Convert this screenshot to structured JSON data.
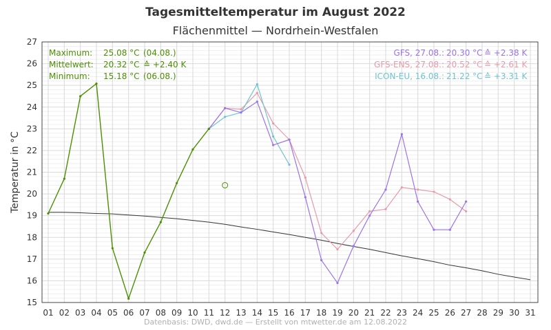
{
  "chart_data": {
    "type": "line",
    "title": "Tagesmitteltemperatur im August 2022",
    "subtitle": "Flächenmittel — Nordrhein-Westfalen",
    "ylabel": "Temperatur in °C",
    "source": "Datenbasis: DWD, dwd.de — Erstellt von mtwetter.de am 12.08.2022",
    "ylim": [
      15,
      27
    ],
    "xlim": [
      1,
      31
    ],
    "x_tick_labels": [
      "01",
      "02",
      "03",
      "04",
      "05",
      "06",
      "07",
      "08",
      "09",
      "10",
      "11",
      "12",
      "13",
      "14",
      "15",
      "16",
      "17",
      "18",
      "19",
      "20",
      "21",
      "22",
      "23",
      "24",
      "25",
      "26",
      "27",
      "28",
      "29",
      "30",
      "31"
    ],
    "y_ticks": [
      15,
      16,
      17,
      18,
      19,
      20,
      21,
      22,
      23,
      24,
      25,
      26,
      27
    ],
    "grid": true,
    "stats": [
      {
        "label": "Maximum:",
        "value": "25.08 °C",
        "extra": "(04.08.)"
      },
      {
        "label": "Mittelwert:",
        "value": "20.32 °C",
        "extra": "≙ +2.40 K"
      },
      {
        "label": "Minimum:",
        "value": "15.18 °C",
        "extra": "(06.08.)"
      }
    ],
    "legend": [
      {
        "label": "GFS, 27.08.:",
        "value": "20.30 °C",
        "delta": "≙ +2.38 K",
        "color": "#9b72ea"
      },
      {
        "label": "GFS-ENS, 27.08.:",
        "value": "20.52 °C",
        "delta": "≙ +2.61 K",
        "color": "#e89aa8"
      },
      {
        "label": "ICON-EU, 16.08.:",
        "value": "21.22 °C",
        "delta": "≙ +3.31 K",
        "color": "#6cc4d0"
      }
    ],
    "mean_marker": {
      "x": 12,
      "y": 20.4,
      "color": "#4a8f00"
    },
    "series": [
      {
        "key": "observed",
        "color": "#4a8f00",
        "x": [
          1,
          2,
          3,
          4,
          5,
          6,
          7,
          8,
          9,
          10,
          11
        ],
        "y": [
          19.1,
          20.7,
          24.5,
          25.08,
          17.5,
          15.18,
          17.3,
          18.7,
          20.5,
          22.05,
          23.0
        ]
      },
      {
        "key": "climate",
        "color": "#333333",
        "x": [
          1,
          2,
          3,
          4,
          5,
          6,
          7,
          8,
          9,
          10,
          11,
          12,
          13,
          14,
          15,
          16,
          17,
          18,
          19,
          20,
          21,
          22,
          23,
          24,
          25,
          26,
          27,
          28,
          29,
          30,
          31
        ],
        "y": [
          19.15,
          19.15,
          19.13,
          19.1,
          19.08,
          19.03,
          18.98,
          18.92,
          18.86,
          18.78,
          18.7,
          18.6,
          18.48,
          18.37,
          18.25,
          18.13,
          18.0,
          17.87,
          17.72,
          17.58,
          17.45,
          17.3,
          17.15,
          17.02,
          16.88,
          16.72,
          16.6,
          16.46,
          16.3,
          16.17,
          16.05
        ]
      },
      {
        "key": "gfs",
        "color": "#9b72ea",
        "x": [
          11,
          12,
          13,
          14,
          15,
          16,
          17,
          18,
          19,
          20,
          21,
          22,
          23,
          24,
          25,
          26,
          27
        ],
        "y": [
          23.0,
          23.95,
          23.75,
          24.25,
          22.25,
          22.5,
          19.85,
          16.95,
          15.9,
          17.6,
          19.0,
          20.2,
          22.75,
          19.65,
          18.35,
          18.35,
          19.65
        ]
      },
      {
        "key": "gfs_ens",
        "color": "#e89aa8",
        "x": [
          11,
          12,
          13,
          14,
          15,
          16,
          17,
          18,
          19,
          20,
          21,
          22,
          23,
          24,
          25,
          26,
          27
        ],
        "y": [
          23.0,
          23.95,
          23.9,
          24.65,
          23.25,
          22.5,
          20.75,
          18.2,
          17.45,
          18.3,
          19.2,
          19.3,
          20.3,
          20.2,
          20.1,
          19.75,
          19.2
        ]
      },
      {
        "key": "icon_eu",
        "color": "#6cc4d0",
        "x": [
          11,
          12,
          13,
          14,
          15,
          16
        ],
        "y": [
          23.0,
          23.55,
          23.75,
          25.05,
          22.65,
          21.35
        ]
      }
    ]
  }
}
